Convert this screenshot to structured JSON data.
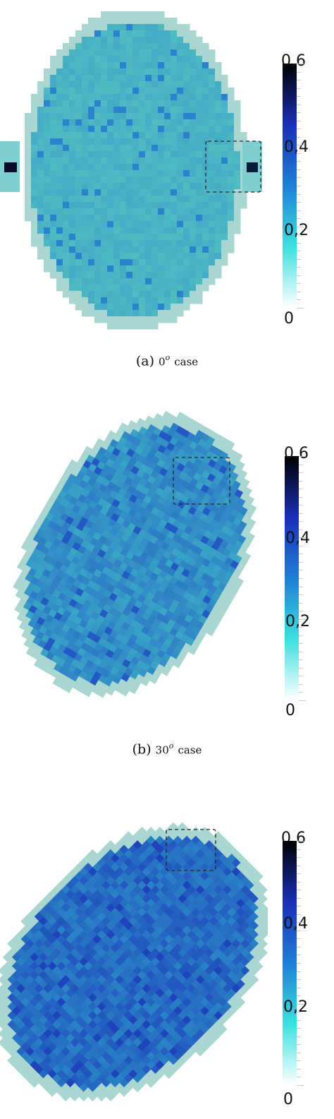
{
  "figures": [
    {
      "id": "a",
      "caption_label": "(a)",
      "caption_angle": "0",
      "caption_sup": "o",
      "caption_word": "case",
      "rotation_deg": 0,
      "colorbar_labels": [
        "0,6",
        "0,4",
        "0,2",
        "0"
      ]
    },
    {
      "id": "b",
      "caption_label": "(b)",
      "caption_angle": "30",
      "caption_sup": "o",
      "caption_word": "case",
      "rotation_deg": 30,
      "colorbar_labels": [
        "0,6",
        "0,4",
        "0,2",
        "0"
      ]
    },
    {
      "id": "c",
      "caption_label": "",
      "caption_angle": "",
      "caption_sup": "",
      "caption_word": "",
      "rotation_deg": 45,
      "colorbar_labels": [
        "0,6",
        "0,4",
        "0,2",
        "0"
      ]
    }
  ],
  "colormap": {
    "min": 0,
    "max": 0.6,
    "stops": [
      "#ffffff",
      "#3de0e0",
      "#1f7fd6",
      "#1a2fb8",
      "#000000"
    ]
  },
  "colors": {
    "rim": "#a9d6d1",
    "interior_0": "#4fbcc2",
    "interior_30": "#3aa6c7",
    "interior_45": "#2a84c6"
  }
}
